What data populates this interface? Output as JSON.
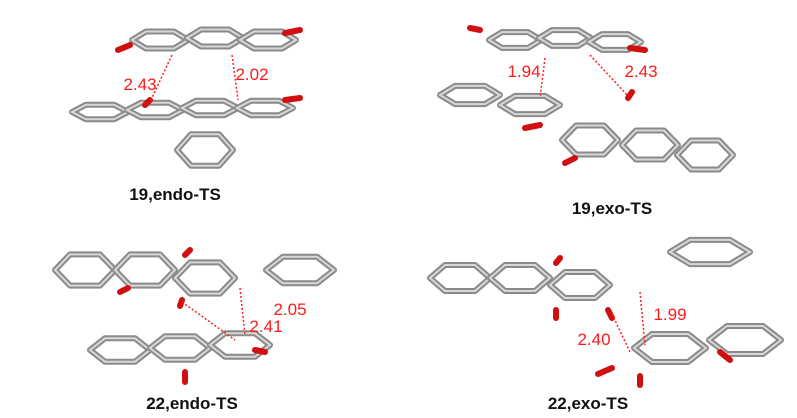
{
  "panels": [
    {
      "label": "19,endo-TS",
      "distances": [
        "2.43",
        "2.02"
      ]
    },
    {
      "label": "19,exo-TS",
      "distances": [
        "1.94",
        "2.43"
      ]
    },
    {
      "label": "22,endo-TS",
      "distances": [
        "2.41",
        "2.05"
      ]
    },
    {
      "label": "22,exo-TS",
      "distances": [
        "1.99",
        "2.40"
      ]
    }
  ]
}
